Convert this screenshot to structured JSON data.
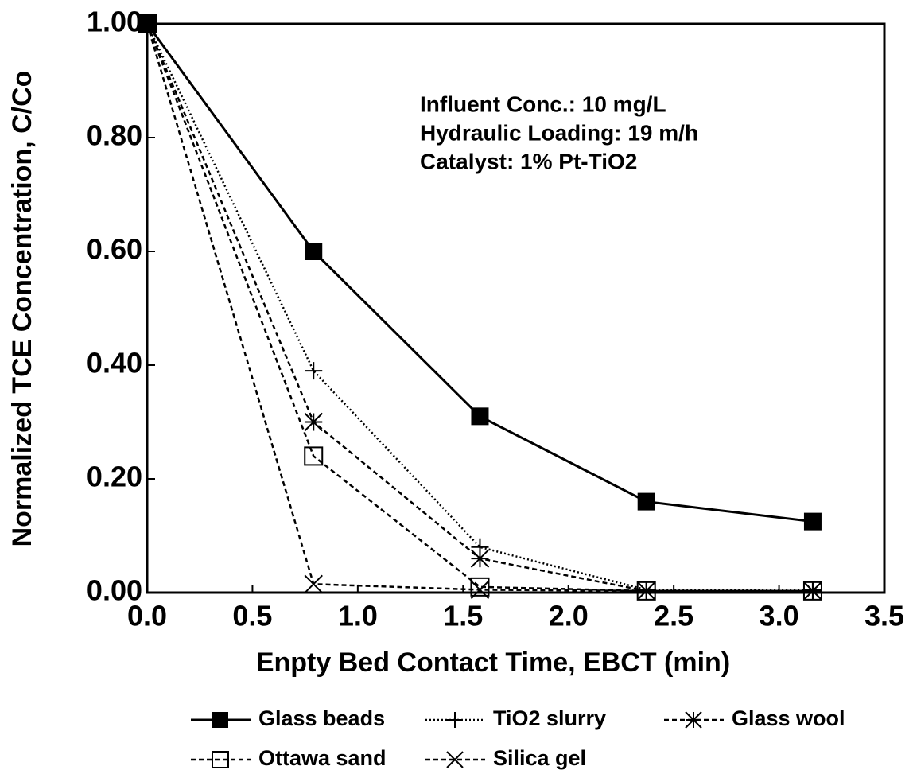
{
  "chart_data": {
    "type": "line",
    "xlabel": "Enpty Bed Contact Time, EBCT (min)",
    "ylabel": "Normalized TCE Concentration, C/Co",
    "annotations": [
      "Influent Conc.: 10 mg/L",
      "Hydraulic Loading: 19 m/h",
      "Catalyst: 1% Pt-TiO2"
    ],
    "x": [
      0,
      0.79,
      1.58,
      2.37,
      3.16
    ],
    "series": [
      {
        "name": "Glass beads",
        "color": "#000000",
        "linestyle": "solid",
        "marker": "square-filled",
        "values": [
          1.0,
          0.6,
          0.31,
          0.16,
          0.125
        ]
      },
      {
        "name": "TiO2 slurry",
        "color": "#000000",
        "linestyle": "dotted",
        "marker": "plus",
        "values": [
          1.0,
          0.39,
          0.08,
          0.005,
          0.005
        ]
      },
      {
        "name": "Glass wool",
        "color": "#000000",
        "linestyle": "dashed",
        "marker": "asterisk",
        "values": [
          1.0,
          0.3,
          0.06,
          0.003,
          0.003
        ]
      },
      {
        "name": "Ottawa sand",
        "color": "#000000",
        "linestyle": "dashed",
        "marker": "square-open",
        "values": [
          1.0,
          0.24,
          0.01,
          0.003,
          0.003
        ]
      },
      {
        "name": "Silica gel",
        "color": "#000000",
        "linestyle": "dashed",
        "marker": "x",
        "values": [
          1.0,
          0.015,
          0.005,
          0.003,
          0.003
        ]
      }
    ],
    "xlim": [
      0,
      3.5
    ],
    "xticks": [
      {
        "value": 0,
        "label": "0.0"
      },
      {
        "value": 0.5,
        "label": "0.5"
      },
      {
        "value": 1,
        "label": "1.0"
      },
      {
        "value": 1.5,
        "label": "1.5"
      },
      {
        "value": 2,
        "label": "2.0"
      },
      {
        "value": 2.5,
        "label": "2.5"
      },
      {
        "value": 3,
        "label": "3.0"
      },
      {
        "value": 3.5,
        "label": "3.5"
      }
    ],
    "ylim": [
      0,
      1
    ],
    "yticks": [
      {
        "value": 0,
        "label": "0.00"
      },
      {
        "value": 0.2,
        "label": "0.20"
      },
      {
        "value": 0.4,
        "label": "0.40"
      },
      {
        "value": 0.6,
        "label": "0.60"
      },
      {
        "value": 0.8,
        "label": "0.80"
      },
      {
        "value": 1,
        "label": "1.00"
      }
    ],
    "grid": false
  }
}
